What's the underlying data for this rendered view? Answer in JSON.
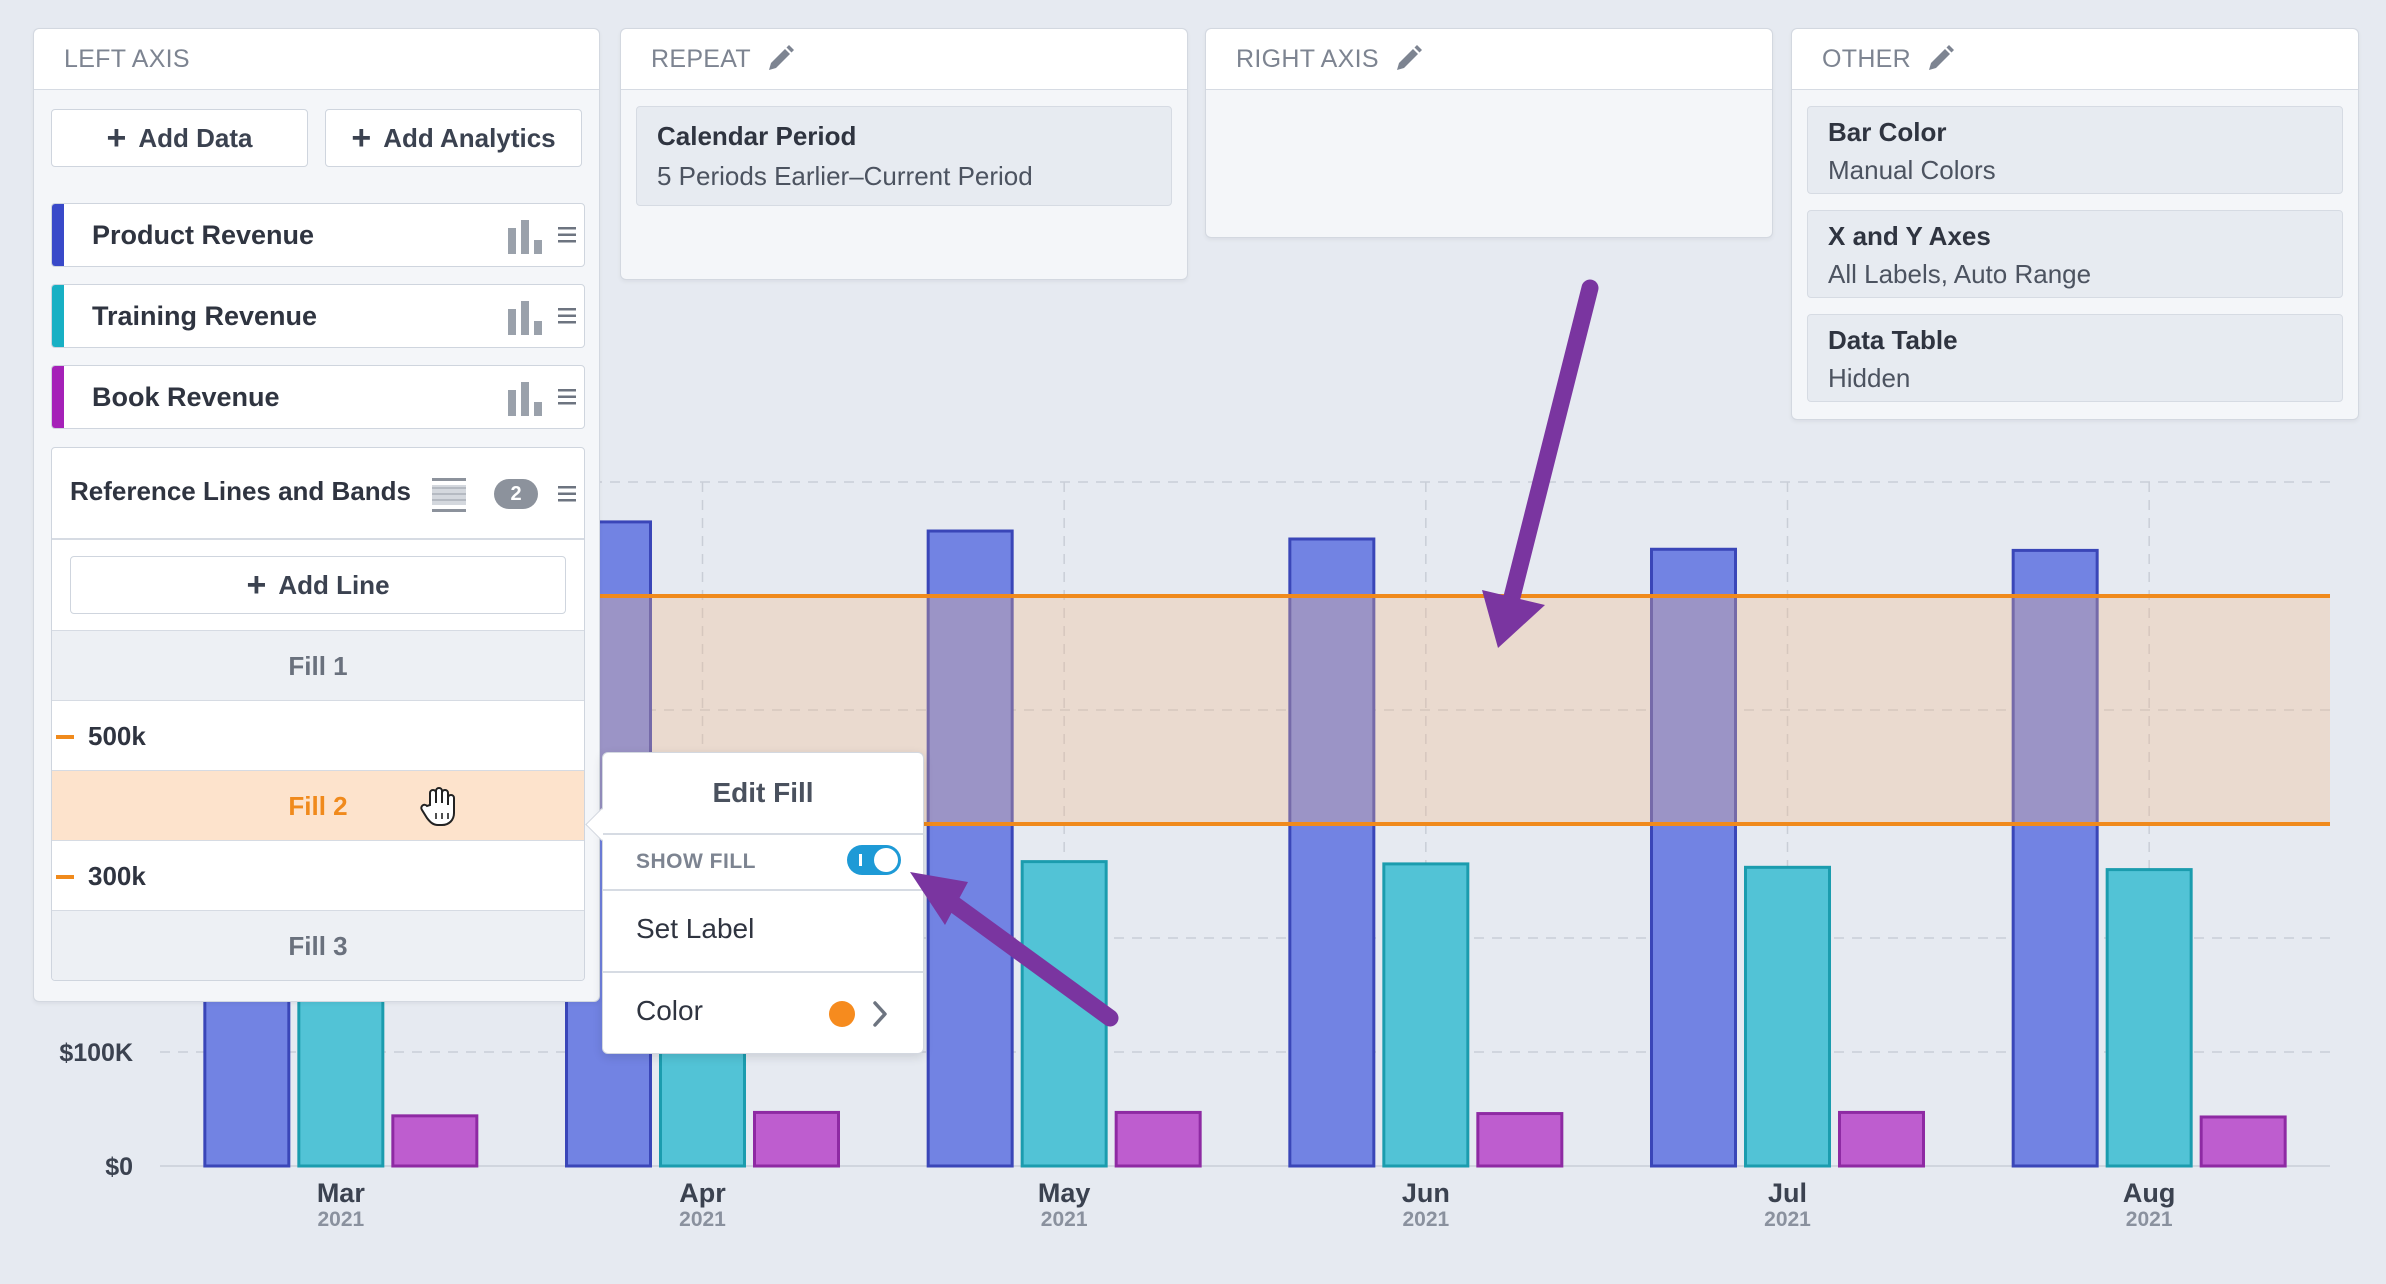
{
  "left_axis": {
    "header": "LEFT AXIS",
    "add_data": "Add Data",
    "add_analytics": "Add Analytics",
    "series": [
      {
        "label": "Product Revenue",
        "color": "#3949c9"
      },
      {
        "label": "Training Revenue",
        "color": "#18b0c4"
      },
      {
        "label": "Book Revenue",
        "color": "#a521b8"
      }
    ],
    "reference": {
      "title": "Reference Lines and Bands",
      "count": "2",
      "add_line": "Add Line",
      "rows": [
        {
          "type": "fill",
          "label": "Fill 1"
        },
        {
          "type": "line",
          "label": "500k"
        },
        {
          "type": "fill",
          "label": "Fill 2",
          "active": true
        },
        {
          "type": "line",
          "label": "300k"
        },
        {
          "type": "fill",
          "label": "Fill 3"
        }
      ]
    }
  },
  "repeat": {
    "header": "REPEAT",
    "box_title": "Calendar Period",
    "box_sub": "5 Periods Earlier–Current Period"
  },
  "right_axis": {
    "header": "RIGHT AXIS"
  },
  "other": {
    "header": "OTHER",
    "items": [
      {
        "title": "Bar Color",
        "sub": "Manual Colors"
      },
      {
        "title": "X and Y Axes",
        "sub": "All Labels, Auto Range"
      },
      {
        "title": "Data Table",
        "sub": "Hidden"
      }
    ]
  },
  "popup": {
    "title": "Edit Fill",
    "show_fill": "SHOW FILL",
    "show_fill_on": true,
    "set_label": "Set Label",
    "color_label": "Color",
    "color_value": "#f68b1e"
  },
  "chart_data": {
    "type": "bar",
    "categories": [
      "Mar",
      "Apr",
      "May",
      "Jun",
      "Jul",
      "Aug"
    ],
    "category_years": [
      "2021",
      "2021",
      "2021",
      "2021",
      "2021",
      "2021"
    ],
    "y_tick_labels": [
      "$0",
      "$100K"
    ],
    "y_ticks": [
      0,
      100000
    ],
    "ylim": [
      0,
      600000
    ],
    "series": [
      {
        "name": "Product Revenue",
        "values": [
          580000,
          565000,
          557000,
          550000,
          541000,
          540000
        ],
        "fill": "#7283e3",
        "stroke": "#3a46b8"
      },
      {
        "name": "Training Revenue",
        "values": [
          260000,
          260000,
          267000,
          265000,
          262000,
          260000
        ],
        "fill": "#52c3d6",
        "stroke": "#1b9cae"
      },
      {
        "name": "Book Revenue",
        "values": [
          44000,
          47000,
          47000,
          46000,
          47000,
          43000
        ],
        "fill": "#be5dcf",
        "stroke": "#8e2aa3"
      }
    ],
    "reference_lines": [
      500000,
      300000
    ],
    "reference_line_color": "#f08a1c",
    "band": {
      "from": 300000,
      "to": 500000,
      "color": "#f2b888"
    },
    "grid": true
  }
}
